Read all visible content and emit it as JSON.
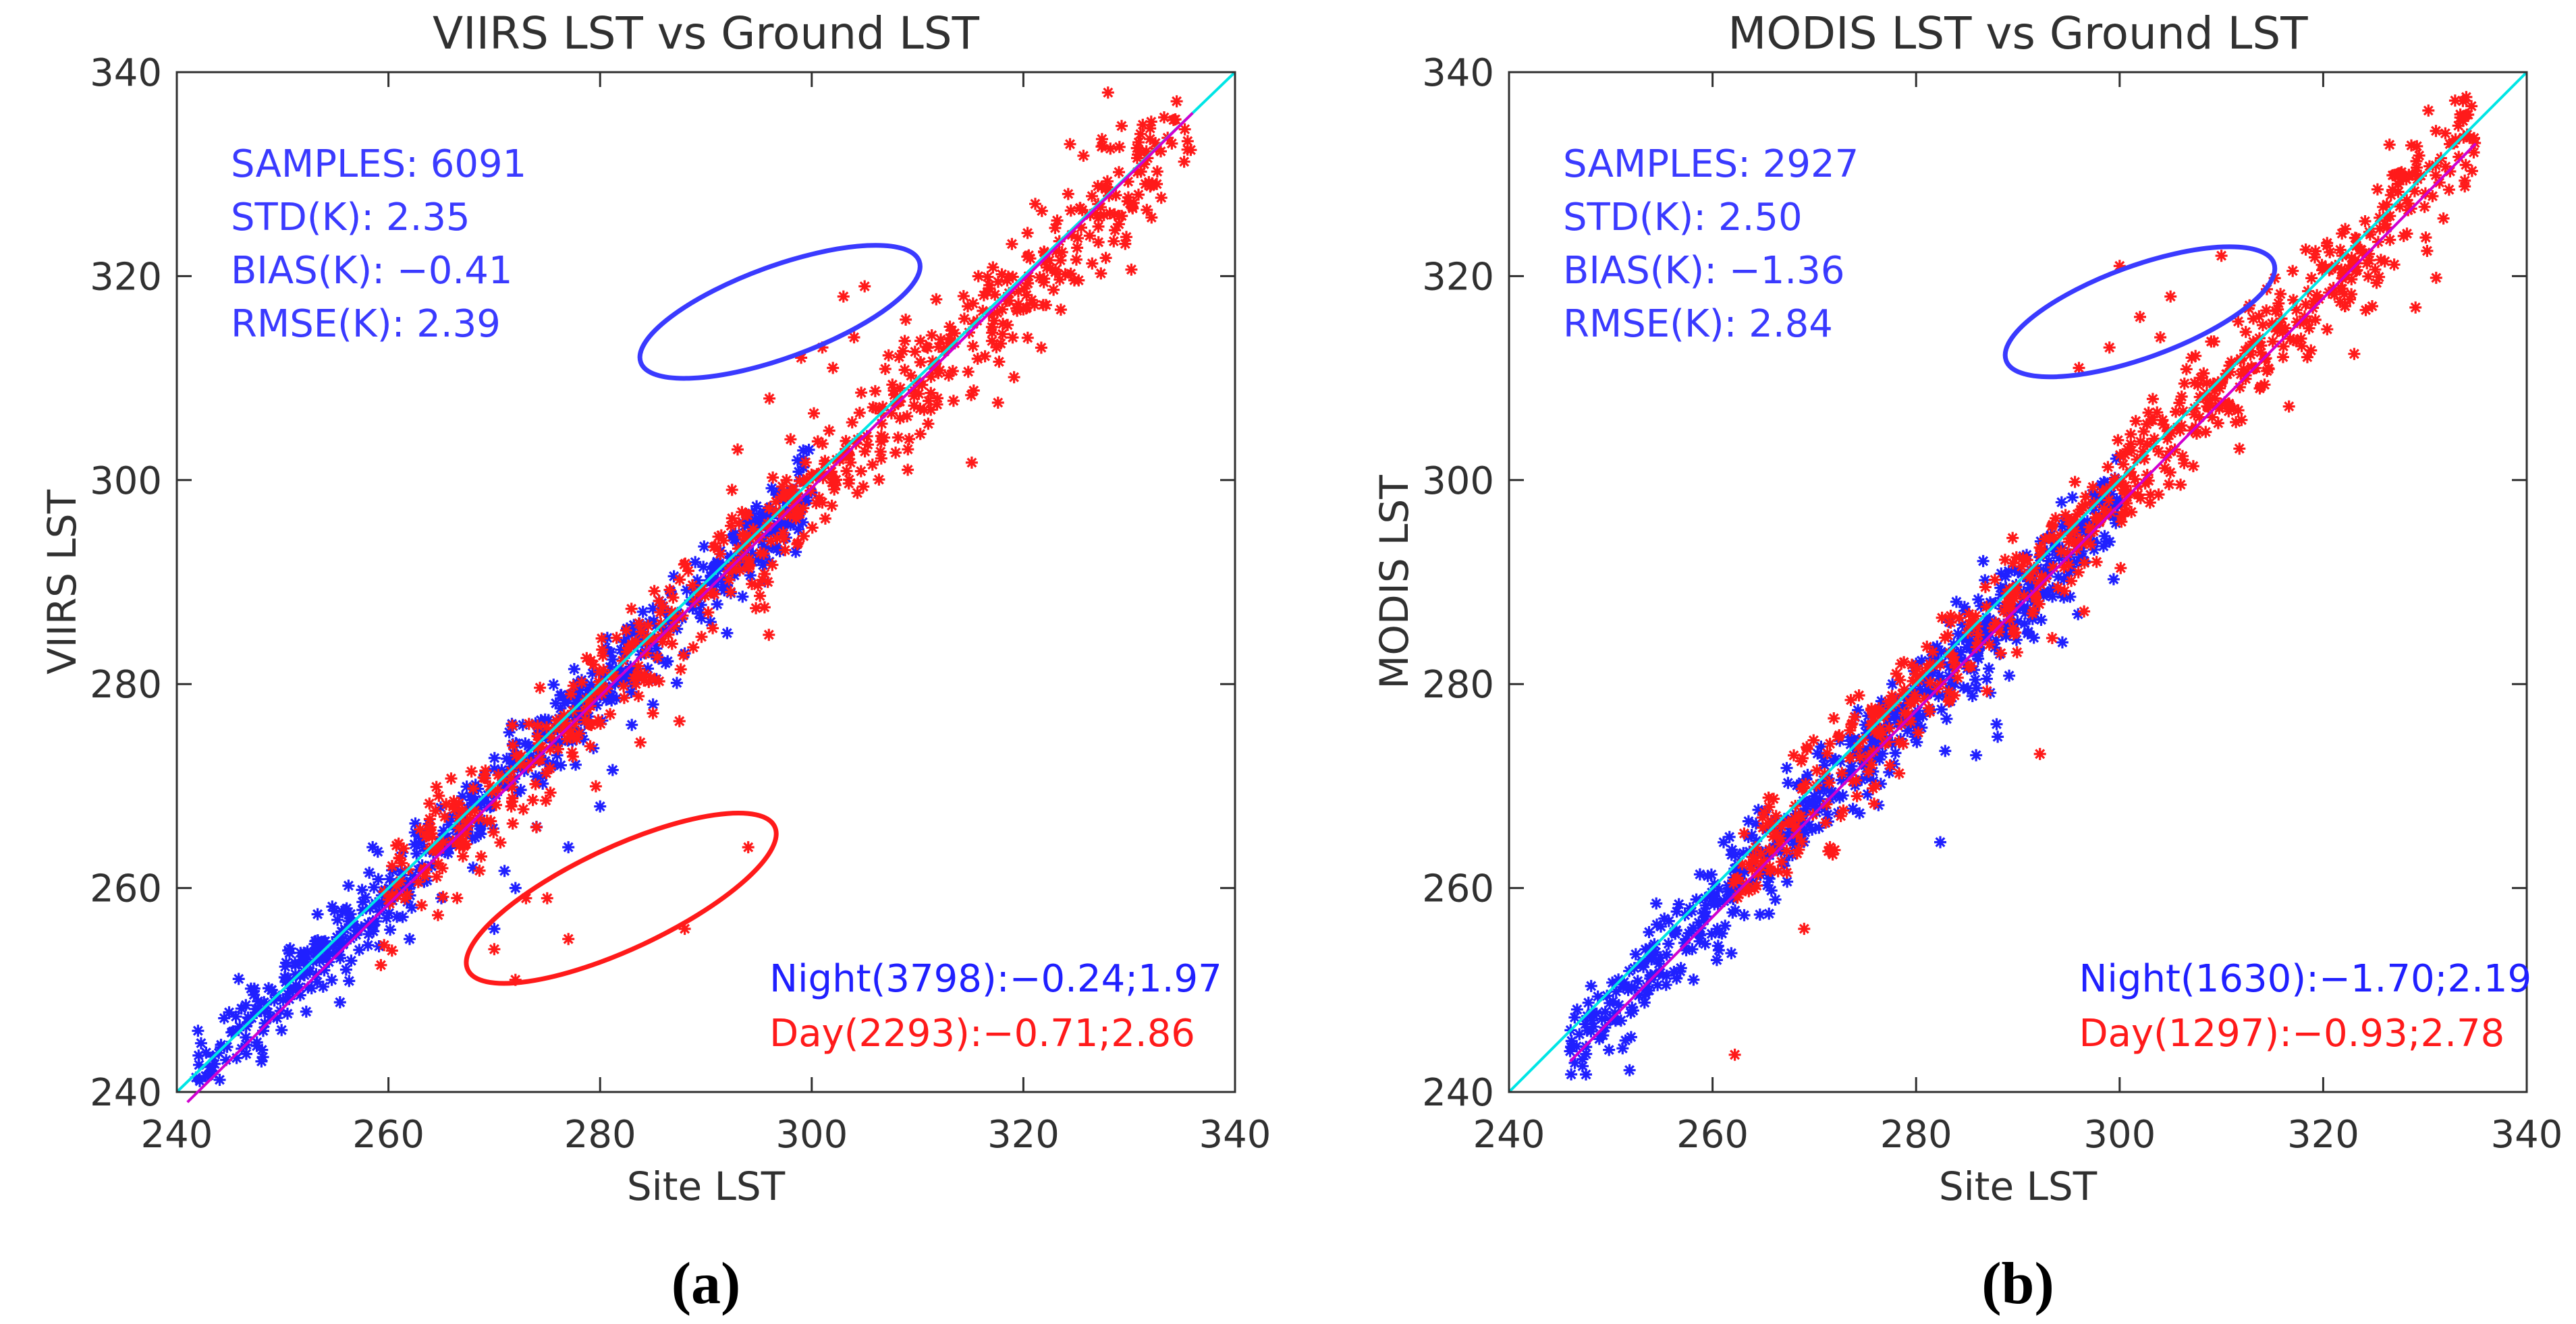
{
  "figure": {
    "panels": [
      {
        "caption_letter": "a",
        "stats_lines": [
          "SAMPLES: 6091",
          "STD(K): 2.35",
          "BIAS(K): −0.41",
          "RMSE(K): 2.39"
        ],
        "night_label": "Night(3798):−0.24;1.97",
        "day_label": "Day(2293):−0.71;2.86"
      },
      {
        "caption_letter": "b",
        "stats_lines": [
          "SAMPLES: 2927",
          "STD(K): 2.50",
          "BIAS(K): −1.36",
          "RMSE(K): 2.84"
        ],
        "night_label": "Night(1630):−1.70;2.19",
        "day_label": "Day(1297):−0.93;2.78"
      }
    ]
  },
  "colors": {
    "night": "#2020ff",
    "day": "#ff1a1a",
    "one_to_one_line": "#00e5e5",
    "fit_line": "#d000d0",
    "text_stats": "#3a3aff",
    "axis": "#303030"
  },
  "chart_data": [
    {
      "type": "scatter",
      "title": "VIIRS LST vs Ground LST",
      "xlabel": "Site LST",
      "ylabel": "VIIRS LST",
      "xlim": [
        240,
        340
      ],
      "ylim": [
        240,
        340
      ],
      "xticks": [
        240,
        260,
        280,
        300,
        320,
        340
      ],
      "yticks": [
        240,
        260,
        280,
        300,
        320,
        340
      ],
      "grid": false,
      "series": [
        {
          "name": "Night",
          "color": "#2020ff",
          "generator": {
            "count": 3798,
            "x_range": [
              241,
              300
            ],
            "bias": -0.24,
            "std": 1.97
          },
          "points": [
            [
              242,
              246
            ],
            [
              248,
              243
            ],
            [
              256,
              252
            ],
            [
              262,
              255
            ],
            [
              265,
              259
            ],
            [
              268,
              262
            ],
            [
              270,
              256
            ],
            [
              272,
              260
            ],
            [
              274,
              266
            ],
            [
              277,
              264
            ],
            [
              280,
              268
            ],
            [
              283,
              276
            ],
            [
              285,
              278
            ],
            [
              288,
              283
            ],
            [
              292,
              285
            ],
            [
              296,
              292
            ]
          ]
        },
        {
          "name": "Day",
          "color": "#ff1a1a",
          "generator": {
            "count": 2293,
            "x_range": [
              259,
              336
            ],
            "bias": -0.71,
            "std": 2.86
          },
          "points": [
            [
              303,
              318
            ],
            [
              305,
              319
            ],
            [
              301,
              313
            ],
            [
              299,
              312
            ],
            [
              304,
              314
            ],
            [
              302,
              311
            ],
            [
              296,
              308
            ],
            [
              298,
              304
            ],
            [
              293,
              303
            ],
            [
              273,
              259
            ],
            [
              275,
              259
            ],
            [
              270,
              254
            ],
            [
              272,
              251
            ],
            [
              277,
              255
            ],
            [
              288,
              256
            ],
            [
              294,
              264
            ],
            [
              328,
              338
            ]
          ]
        }
      ],
      "lines": [
        {
          "name": "1:1",
          "color": "#00e5e5",
          "from": [
            240,
            240
          ],
          "to": [
            340,
            340
          ]
        },
        {
          "name": "fit",
          "color": "#d000d0",
          "from": [
            241,
            239
          ],
          "to": [
            336,
            336
          ]
        }
      ],
      "ellipses": [
        {
          "color": "#3a3aff",
          "center": [
            297,
            316.5
          ],
          "rx": 14,
          "ry": 4.5,
          "rotate": -20
        },
        {
          "color": "#ff1a1a",
          "center": [
            282,
            259
          ],
          "rx": 16,
          "ry": 5,
          "rotate": -25
        }
      ]
    },
    {
      "type": "scatter",
      "title": "MODIS LST vs Ground LST",
      "xlabel": "Site LST",
      "ylabel": "MODIS LST",
      "xlim": [
        240,
        340
      ],
      "ylim": [
        240,
        340
      ],
      "xticks": [
        240,
        260,
        280,
        300,
        320,
        340
      ],
      "yticks": [
        240,
        260,
        280,
        300,
        320,
        340
      ],
      "grid": false,
      "series": [
        {
          "name": "Night",
          "color": "#2020ff",
          "generator": {
            "count": 1630,
            "x_range": [
              246,
              300
            ],
            "bias": -1.7,
            "std": 2.19
          },
          "points": [
            [
              246,
              244
            ],
            [
              251,
              247
            ],
            [
              254,
              253
            ],
            [
              258,
              254
            ],
            [
              262,
              259
            ],
            [
              266,
              264
            ],
            [
              270,
              268
            ],
            [
              275,
              276
            ],
            [
              280,
              282
            ],
            [
              285,
              285
            ],
            [
              290,
              291
            ],
            [
              295,
              291
            ]
          ]
        },
        {
          "name": "Day",
          "color": "#ff1a1a",
          "generator": {
            "count": 1297,
            "x_range": [
              262,
              335
            ],
            "bias": -0.93,
            "std": 2.78
          },
          "points": [
            [
              300,
              321
            ],
            [
              310,
              322
            ],
            [
              305,
              318
            ],
            [
              302,
              316
            ],
            [
              299,
              313
            ],
            [
              296,
              311
            ],
            [
              304,
              314
            ],
            [
              269,
              256
            ],
            [
              332,
              334
            ]
          ]
        }
      ],
      "lines": [
        {
          "name": "1:1",
          "color": "#00e5e5",
          "from": [
            240,
            240
          ],
          "to": [
            340,
            340
          ]
        },
        {
          "name": "fit",
          "color": "#d000d0",
          "from": [
            246,
            243
          ],
          "to": [
            335,
            333
          ]
        }
      ],
      "ellipses": [
        {
          "color": "#3a3aff",
          "center": [
            302,
            316.5
          ],
          "rx": 14,
          "ry": 4.5,
          "rotate": -20
        }
      ]
    }
  ]
}
